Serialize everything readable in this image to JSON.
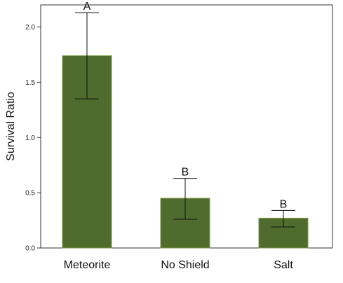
{
  "chart_data": {
    "type": "bar",
    "title": "",
    "xlabel": "",
    "ylabel": "Survival Ratio",
    "ylim": [
      0,
      2.2
    ],
    "yticks": [
      0.0,
      0.5,
      1.0,
      1.5,
      2.0
    ],
    "ytick_labels": [
      "0.0",
      "0.5",
      "1.0",
      "1.5",
      "2.0"
    ],
    "categories": [
      "Meteorite",
      "No Shield",
      "Salt"
    ],
    "values": [
      1.74,
      0.45,
      0.27
    ],
    "error_bars": [
      {
        "low": 1.35,
        "high": 2.13
      },
      {
        "low": 0.26,
        "high": 0.63
      },
      {
        "low": 0.19,
        "high": 0.34
      }
    ],
    "significance_labels": [
      "A",
      "B",
      "B"
    ],
    "grid": false,
    "legend": false,
    "colors": {
      "bar_fill": "#4f6b2d",
      "bar_edge": "#7e9a49",
      "error_bar": "#111111",
      "axis": "#333333",
      "frame": "#333333"
    }
  }
}
